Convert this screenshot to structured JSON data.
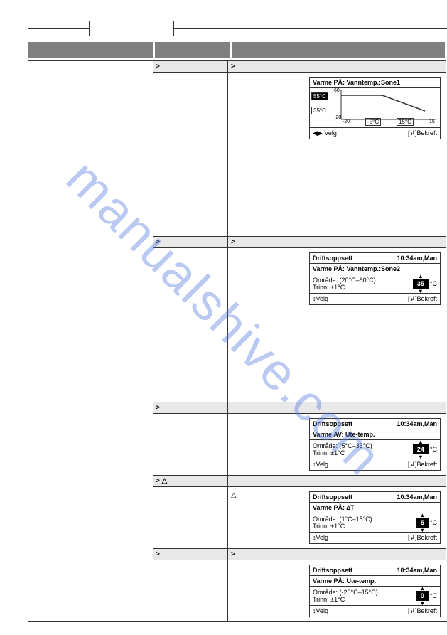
{
  "watermark": "manualshive.com",
  "arrow": ">",
  "triangle": "△",
  "sections": [
    {
      "head_l": ">",
      "head_r": ">",
      "body_class": "med",
      "panel": {
        "type": "chart",
        "title": "Varme PÅ: Vanntemp.:Sone1",
        "y_hi": "55°C",
        "y_lo": "35°C",
        "y_top": "60",
        "y_bot": "-20",
        "x_l": "-20",
        "x_m1": "-5°C",
        "x_m2": "15°C",
        "x_r": "15",
        "foot_l": "◀▶ Velg",
        "foot_r": "[↲]Bekreft",
        "chart_colors": {
          "line": "#000000",
          "bg": "#ffffff",
          "border": "#333333"
        }
      }
    },
    {
      "body_only": true,
      "body_class": "tall"
    },
    {
      "head_l": ">",
      "head_r": ">",
      "body_class": "med",
      "panel": {
        "type": "value",
        "title_l": "Driftsoppsett",
        "title_r": "10:34am,Man",
        "sub": "Varme PÅ: Vanntemp.:Sone2",
        "range": "Område: (20°C–60°C)",
        "step": "Trinn: ±1°C",
        "value": "35",
        "unit": "°C",
        "foot_l": "↕Velg",
        "foot_r": "[↲]Bekreft"
      }
    },
    {
      "body_only": true,
      "body_class": "tall"
    },
    {
      "head_l": ">",
      "head_r": "",
      "body_class": "med",
      "panel": {
        "type": "value",
        "title_l": "Driftsoppsett",
        "title_r": "10:34am,Man",
        "sub": "Varme AV: Ute-temp.",
        "range": "Område: (5°C–35°C)",
        "step": "Trinn: ±1°C",
        "value": "24",
        "unit": "°C",
        "foot_l": "↕Velg",
        "foot_r": "[↲]Bekreft"
      }
    },
    {
      "head_l": "> △",
      "head_r": "",
      "body_class": "med",
      "body_r_text": "△",
      "panel": {
        "type": "value",
        "title_l": "Driftsoppsett",
        "title_r": "10:34am,Man",
        "sub": "Varme PÅ: ∆T",
        "range": "Område: (1°C–15°C)",
        "step": "Trinn: ±1°C",
        "value": "5",
        "unit": "°C",
        "foot_l": "↕Velg",
        "foot_r": "[↲]Bekreft"
      }
    },
    {
      "head_l": ">",
      "head_r": ">",
      "body_class": "med",
      "panel": {
        "type": "value",
        "title_l": "Driftsoppsett",
        "title_r": "10:34am,Man",
        "sub": "Varme PÅ: Ute-temp.",
        "range": "Område: (-20°C–15°C)",
        "step": "Trinn: ±1°C",
        "value": "0",
        "unit": "°C",
        "foot_l": "↕Velg",
        "foot_r": "[↲]Bekreft"
      }
    }
  ]
}
